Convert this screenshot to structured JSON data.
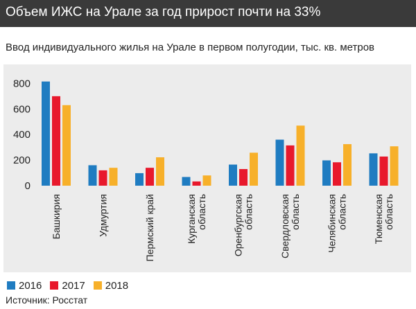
{
  "header": {
    "title": "Объем ИЖС на Урале за год прирост почти на 33%"
  },
  "source": {
    "text": "Источник: Росстат"
  },
  "colors": {
    "2016": "#1f7cc1",
    "2017": "#e8192c",
    "2018": "#f7b02a",
    "header_bg": "#3a3a3a",
    "panel_bg": "#ececec"
  },
  "chart_data": {
    "type": "bar",
    "title": "Ввод индивидуального жилья на Урале в первом полугодии, тыс. кв. метров",
    "categories": [
      "Башкирия",
      "Удмуртия",
      "Пермский край",
      "Курганская область",
      "Оренбургская область",
      "Свердловская область",
      "Челябинская область",
      "Тюменская область"
    ],
    "category_lines": [
      [
        "Башкирия"
      ],
      [
        "Удмуртия"
      ],
      [
        "Пермский край"
      ],
      [
        "Курганская",
        "область"
      ],
      [
        "Оренбургская",
        "область"
      ],
      [
        "Свердловская",
        "область"
      ],
      [
        "Челябинская",
        "область"
      ],
      [
        "Тюменская",
        "область"
      ]
    ],
    "series": [
      {
        "name": "2016",
        "color": "#1f7cc1",
        "values": [
          815,
          160,
          98,
          68,
          165,
          360,
          198,
          253
        ]
      },
      {
        "name": "2017",
        "color": "#e8192c",
        "values": [
          700,
          120,
          140,
          33,
          130,
          315,
          183,
          228
        ]
      },
      {
        "name": "2018",
        "color": "#f7b02a",
        "values": [
          630,
          140,
          222,
          80,
          258,
          470,
          325,
          308
        ]
      }
    ],
    "yticks": [
      0,
      200,
      400,
      600,
      800
    ],
    "ylim": [
      0,
      900
    ],
    "xlabel": "",
    "ylabel": "",
    "grid": false,
    "legend_position": "bottom-left"
  }
}
